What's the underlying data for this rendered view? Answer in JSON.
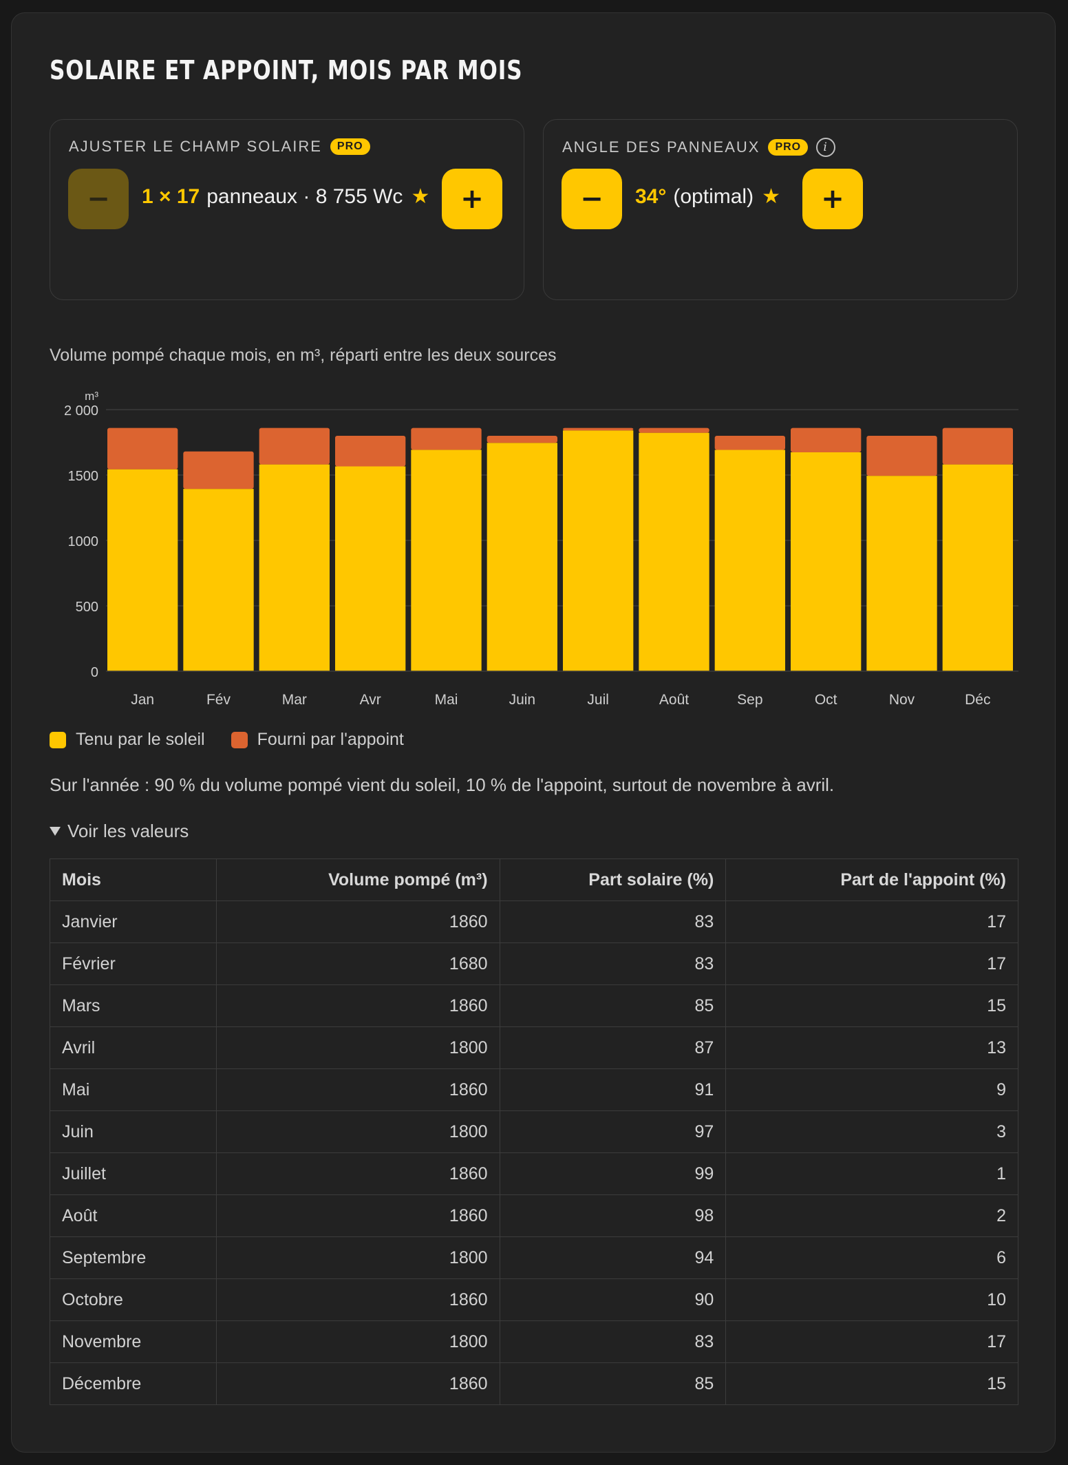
{
  "title": "SOLAIRE ET APPOINT, MOIS PAR MOIS",
  "controls": {
    "field": {
      "label": "AJUSTER LE CHAMP SOLAIRE",
      "badge": "PRO",
      "minus_label": "−",
      "plus_label": "+",
      "minus_disabled": true,
      "value": "1 × 17",
      "rest": "panneaux · 8 755 Wc",
      "star": "★"
    },
    "angle": {
      "label": "ANGLE DES PANNEAUX",
      "badge": "PRO",
      "info_glyph": "i",
      "minus_label": "−",
      "plus_label": "+",
      "value": "34°",
      "rest": "(optimal)",
      "star": "★"
    }
  },
  "chart_caption": "Volume pompé chaque mois, en m³, réparti entre les deux sources",
  "chart_data": {
    "type": "bar",
    "stacked": true,
    "unit_label": "m³",
    "categories": [
      "Jan",
      "Fév",
      "Mar",
      "Avr",
      "Mai",
      "Juin",
      "Juil",
      "Août",
      "Sep",
      "Oct",
      "Nov",
      "Déc"
    ],
    "yticks": [
      "0",
      "500",
      "1000",
      "1500",
      "2 000"
    ],
    "ytick_values": [
      0,
      500,
      1000,
      1500,
      2000
    ],
    "ylim": [
      0,
      2000
    ],
    "grid": true,
    "series": [
      {
        "name": "Tenu par le soleil",
        "color": "#ffc700",
        "values": [
          1544,
          1394,
          1581,
          1566,
          1693,
          1746,
          1841,
          1823,
          1692,
          1674,
          1494,
          1581
        ]
      },
      {
        "name": "Fourni par l'appoint",
        "color": "#dc6430",
        "values": [
          316,
          286,
          279,
          234,
          167,
          54,
          19,
          37,
          108,
          186,
          306,
          279
        ]
      }
    ],
    "legend_position": "bottom-left"
  },
  "summary": "Sur l'année : 90 % du volume pompé vient du soleil, 10 % de l'appoint, surtout de novembre à avril.",
  "table_toggle": "Voir les valeurs",
  "table": {
    "headers": [
      "Mois",
      "Volume pompé (m³)",
      "Part solaire (%)",
      "Part de l'appoint (%)"
    ],
    "rows": [
      [
        "Janvier",
        "1860",
        "83",
        "17"
      ],
      [
        "Février",
        "1680",
        "83",
        "17"
      ],
      [
        "Mars",
        "1860",
        "85",
        "15"
      ],
      [
        "Avril",
        "1800",
        "87",
        "13"
      ],
      [
        "Mai",
        "1860",
        "91",
        "9"
      ],
      [
        "Juin",
        "1800",
        "97",
        "3"
      ],
      [
        "Juillet",
        "1860",
        "99",
        "1"
      ],
      [
        "Août",
        "1860",
        "98",
        "2"
      ],
      [
        "Septembre",
        "1800",
        "94",
        "6"
      ],
      [
        "Octobre",
        "1860",
        "90",
        "10"
      ],
      [
        "Novembre",
        "1800",
        "83",
        "17"
      ],
      [
        "Décembre",
        "1860",
        "85",
        "15"
      ]
    ]
  }
}
